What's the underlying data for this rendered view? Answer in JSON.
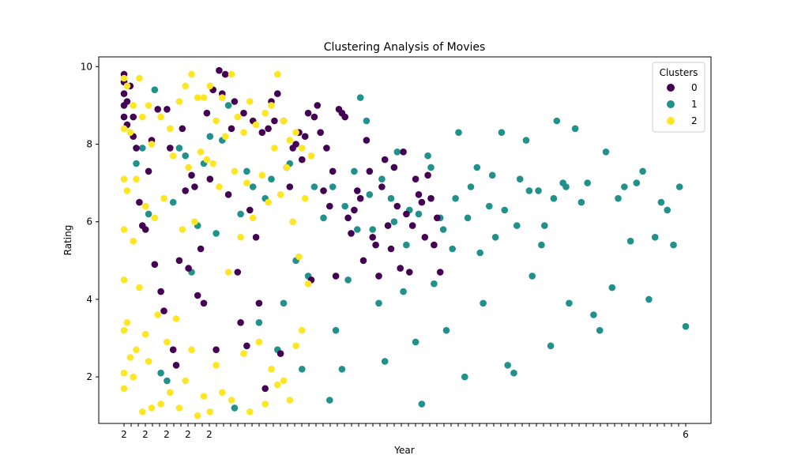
{
  "chart_data": {
    "type": "scatter",
    "title": "Clustering Analysis of Movies",
    "xlabel": "Year",
    "ylabel": "Rating",
    "ylim": [
      0.8,
      10.25
    ],
    "y_ticks": [
      2,
      4,
      6,
      8,
      10
    ],
    "x_ticks_visible": [
      "2",
      "2",
      "2",
      "2",
      "2",
      "6"
    ],
    "x_tick_count_approx": 80,
    "grid": false,
    "legend": {
      "title": "Clusters",
      "placement": "top-right",
      "entries": [
        "0",
        "1",
        "2"
      ]
    },
    "colors": {
      "0": "#440154",
      "1": "#21918c",
      "2": "#fde725"
    },
    "series": [
      {
        "name": "0",
        "points": [
          [
            1,
            9.8
          ],
          [
            1,
            9.6
          ],
          [
            1,
            9.3
          ],
          [
            1,
            9.0
          ],
          [
            1,
            8.7
          ],
          [
            2,
            9.1
          ],
          [
            2,
            8.5
          ],
          [
            3,
            9.5
          ],
          [
            4,
            8.7
          ],
          [
            4,
            8.2
          ],
          [
            5,
            7.9
          ],
          [
            6,
            6.5
          ],
          [
            7,
            5.9
          ],
          [
            8,
            5.8
          ],
          [
            9,
            7.3
          ],
          [
            10,
            8.1
          ],
          [
            11,
            4.9
          ],
          [
            12,
            8.9
          ],
          [
            13,
            4.2
          ],
          [
            14,
            3.7
          ],
          [
            15,
            8.9
          ],
          [
            16,
            7.9
          ],
          [
            17,
            2.7
          ],
          [
            18,
            2.3
          ],
          [
            19,
            5.0
          ],
          [
            20,
            8.4
          ],
          [
            21,
            6.8
          ],
          [
            22,
            4.8
          ],
          [
            23,
            7.2
          ],
          [
            24,
            6.9
          ],
          [
            25,
            4.1
          ],
          [
            26,
            5.3
          ],
          [
            27,
            3.9
          ],
          [
            28,
            8.8
          ],
          [
            29,
            7.1
          ],
          [
            30,
            9.4
          ],
          [
            31,
            2.7
          ],
          [
            32,
            9.9
          ],
          [
            33,
            9.3
          ],
          [
            34,
            9.8
          ],
          [
            35,
            6.7
          ],
          [
            36,
            8.4
          ],
          [
            37,
            9.1
          ],
          [
            38,
            4.7
          ],
          [
            39,
            3.4
          ],
          [
            40,
            8.8
          ],
          [
            41,
            2.8
          ],
          [
            42,
            6.3
          ],
          [
            43,
            8.6
          ],
          [
            44,
            5.6
          ],
          [
            45,
            3.9
          ],
          [
            46,
            8.3
          ],
          [
            47,
            1.7
          ],
          [
            48,
            8.4
          ],
          [
            49,
            9.1
          ],
          [
            50,
            8.6
          ],
          [
            51,
            9.3
          ],
          [
            52,
            2.6
          ],
          [
            53,
            8.6
          ],
          [
            54,
            7.4
          ],
          [
            55,
            6.9
          ],
          [
            56,
            7.9
          ],
          [
            57,
            8.0
          ],
          [
            58,
            8.3
          ],
          [
            59,
            7.6
          ],
          [
            60,
            8.2
          ],
          [
            61,
            8.8
          ],
          [
            62,
            4.5
          ],
          [
            63,
            8.7
          ],
          [
            64,
            9.0
          ],
          [
            65,
            8.3
          ],
          [
            66,
            6.8
          ],
          [
            67,
            7.9
          ],
          [
            68,
            6.4
          ],
          [
            69,
            7.3
          ],
          [
            70,
            4.6
          ],
          [
            71,
            8.9
          ],
          [
            72,
            8.8
          ],
          [
            73,
            8.7
          ],
          [
            74,
            6.1
          ],
          [
            75,
            5.7
          ],
          [
            76,
            6.3
          ],
          [
            77,
            6.8
          ],
          [
            78,
            6.6
          ],
          [
            79,
            5.0
          ],
          [
            80,
            8.1
          ],
          [
            81,
            7.3
          ],
          [
            82,
            5.6
          ],
          [
            83,
            5.4
          ],
          [
            84,
            4.6
          ],
          [
            85,
            6.9
          ],
          [
            86,
            7.6
          ],
          [
            87,
            5.9
          ],
          [
            88,
            5.3
          ],
          [
            89,
            7.4
          ],
          [
            90,
            6.4
          ],
          [
            91,
            4.8
          ],
          [
            92,
            7.8
          ],
          [
            93,
            6.2
          ],
          [
            94,
            4.7
          ],
          [
            95,
            5.9
          ],
          [
            96,
            7.1
          ],
          [
            97,
            6.7
          ],
          [
            98,
            6.5
          ],
          [
            99,
            5.6
          ],
          [
            100,
            7.2
          ],
          [
            101,
            6.6
          ],
          [
            102,
            5.4
          ],
          [
            103,
            6.1
          ],
          [
            104,
            4.7
          ]
        ]
      },
      {
        "name": "1",
        "points": [
          [
            5,
            7.5
          ],
          [
            7,
            7.9
          ],
          [
            9,
            6.2
          ],
          [
            11,
            9.4
          ],
          [
            13,
            2.1
          ],
          [
            15,
            1.9
          ],
          [
            17,
            6.5
          ],
          [
            19,
            7.9
          ],
          [
            21,
            7.7
          ],
          [
            23,
            4.7
          ],
          [
            25,
            5.9
          ],
          [
            27,
            7.5
          ],
          [
            29,
            8.2
          ],
          [
            31,
            5.7
          ],
          [
            33,
            8.1
          ],
          [
            35,
            9.0
          ],
          [
            37,
            1.2
          ],
          [
            39,
            6.2
          ],
          [
            41,
            7.3
          ],
          [
            43,
            6.9
          ],
          [
            45,
            3.4
          ],
          [
            47,
            6.6
          ],
          [
            49,
            7.1
          ],
          [
            51,
            2.7
          ],
          [
            53,
            3.9
          ],
          [
            55,
            7.5
          ],
          [
            57,
            5.0
          ],
          [
            59,
            2.2
          ],
          [
            61,
            4.6
          ],
          [
            63,
            6.9
          ],
          [
            66,
            6.1
          ],
          [
            68,
            1.4
          ],
          [
            70,
            3.2
          ],
          [
            72,
            2.2
          ],
          [
            74,
            4.5
          ],
          [
            76,
            7.3
          ],
          [
            78,
            9.2
          ],
          [
            80,
            8.6
          ],
          [
            82,
            5.8
          ],
          [
            84,
            3.9
          ],
          [
            86,
            2.4
          ],
          [
            88,
            6.6
          ],
          [
            90,
            7.8
          ],
          [
            92,
            4.2
          ],
          [
            94,
            6.3
          ],
          [
            96,
            2.9
          ],
          [
            98,
            1.3
          ],
          [
            100,
            7.7
          ],
          [
            102,
            4.4
          ],
          [
            104,
            6.1
          ],
          [
            106,
            3.2
          ],
          [
            108,
            5.3
          ],
          [
            110,
            8.3
          ],
          [
            112,
            2.0
          ],
          [
            114,
            6.9
          ],
          [
            116,
            7.4
          ],
          [
            118,
            3.9
          ],
          [
            120,
            6.4
          ],
          [
            122,
            5.6
          ],
          [
            124,
            8.3
          ],
          [
            126,
            2.3
          ],
          [
            128,
            2.1
          ],
          [
            130,
            7.1
          ],
          [
            132,
            8.1
          ],
          [
            134,
            4.6
          ],
          [
            136,
            6.8
          ],
          [
            138,
            5.9
          ],
          [
            140,
            2.8
          ],
          [
            142,
            8.6
          ],
          [
            144,
            7.0
          ],
          [
            146,
            3.9
          ],
          [
            148,
            8.4
          ],
          [
            150,
            6.5
          ],
          [
            152,
            7.0
          ],
          [
            154,
            3.6
          ],
          [
            156,
            3.2
          ],
          [
            158,
            7.8
          ],
          [
            160,
            4.3
          ],
          [
            162,
            6.6
          ],
          [
            164,
            6.9
          ],
          [
            166,
            5.5
          ],
          [
            168,
            7.0
          ],
          [
            170,
            7.3
          ],
          [
            172,
            4.0
          ],
          [
            174,
            5.6
          ],
          [
            176,
            6.5
          ],
          [
            178,
            6.3
          ],
          [
            180,
            5.4
          ],
          [
            182,
            6.9
          ],
          [
            184,
            3.3
          ],
          [
            69,
            6.9
          ],
          [
            73,
            6.4
          ],
          [
            77,
            5.8
          ],
          [
            81,
            6.7
          ],
          [
            85,
            7.1
          ],
          [
            89,
            6.0
          ],
          [
            93,
            5.4
          ],
          [
            97,
            6.2
          ],
          [
            101,
            7.4
          ],
          [
            105,
            5.8
          ],
          [
            109,
            6.6
          ],
          [
            113,
            6.1
          ],
          [
            117,
            5.2
          ],
          [
            121,
            7.2
          ],
          [
            125,
            6.3
          ],
          [
            129,
            5.9
          ],
          [
            133,
            6.8
          ],
          [
            137,
            5.4
          ],
          [
            141,
            6.6
          ],
          [
            145,
            6.9
          ]
        ]
      },
      {
        "name": "2",
        "points": [
          [
            1,
            9.7
          ],
          [
            1,
            8.4
          ],
          [
            1,
            7.1
          ],
          [
            1,
            5.8
          ],
          [
            1,
            4.5
          ],
          [
            1,
            3.2
          ],
          [
            1,
            2.1
          ],
          [
            1,
            1.7
          ],
          [
            2,
            9.5
          ],
          [
            2,
            6.8
          ],
          [
            2,
            3.4
          ],
          [
            3,
            8.3
          ],
          [
            3,
            2.5
          ],
          [
            4,
            9.0
          ],
          [
            4,
            5.5
          ],
          [
            4,
            2.0
          ],
          [
            5,
            7.1
          ],
          [
            5,
            2.7
          ],
          [
            6,
            9.7
          ],
          [
            6,
            4.3
          ],
          [
            7,
            8.7
          ],
          [
            7,
            1.1
          ],
          [
            8,
            6.4
          ],
          [
            8,
            3.1
          ],
          [
            9,
            9.0
          ],
          [
            9,
            2.4
          ],
          [
            10,
            8.0
          ],
          [
            10,
            1.2
          ],
          [
            11,
            6.1
          ],
          [
            12,
            3.6
          ],
          [
            13,
            8.7
          ],
          [
            13,
            1.3
          ],
          [
            14,
            6.6
          ],
          [
            15,
            2.9
          ],
          [
            16,
            8.4
          ],
          [
            16,
            1.6
          ],
          [
            17,
            7.7
          ],
          [
            18,
            3.5
          ],
          [
            19,
            9.1
          ],
          [
            19,
            1.2
          ],
          [
            20,
            5.8
          ],
          [
            21,
            9.5
          ],
          [
            21,
            1.9
          ],
          [
            22,
            7.4
          ],
          [
            23,
            9.8
          ],
          [
            23,
            2.7
          ],
          [
            24,
            6.0
          ],
          [
            25,
            9.2
          ],
          [
            25,
            1.0
          ],
          [
            26,
            7.8
          ],
          [
            27,
            9.2
          ],
          [
            27,
            1.5
          ],
          [
            28,
            7.6
          ],
          [
            29,
            9.5
          ],
          [
            29,
            1.1
          ],
          [
            30,
            7.5
          ],
          [
            31,
            8.6
          ],
          [
            31,
            2.3
          ],
          [
            32,
            6.9
          ],
          [
            33,
            9.2
          ],
          [
            33,
            1.6
          ],
          [
            34,
            8.2
          ],
          [
            35,
            4.7
          ],
          [
            36,
            9.8
          ],
          [
            36,
            1.4
          ],
          [
            37,
            7.3
          ],
          [
            38,
            8.7
          ],
          [
            39,
            5.6
          ],
          [
            40,
            8.3
          ],
          [
            40,
            2.6
          ],
          [
            41,
            7.0
          ],
          [
            42,
            9.1
          ],
          [
            42,
            1.1
          ],
          [
            43,
            6.1
          ],
          [
            44,
            8.5
          ],
          [
            45,
            2.9
          ],
          [
            46,
            7.2
          ],
          [
            47,
            8.8
          ],
          [
            47,
            1.3
          ],
          [
            48,
            6.5
          ],
          [
            49,
            9.0
          ],
          [
            49,
            2.2
          ],
          [
            50,
            7.9
          ],
          [
            51,
            9.8
          ],
          [
            51,
            1.8
          ],
          [
            52,
            6.7
          ],
          [
            53,
            8.6
          ],
          [
            53,
            1.9
          ],
          [
            54,
            7.4
          ],
          [
            55,
            8.1
          ],
          [
            55,
            1.4
          ],
          [
            56,
            6.0
          ],
          [
            57,
            8.3
          ],
          [
            57,
            2.8
          ],
          [
            58,
            5.1
          ],
          [
            59,
            7.9
          ],
          [
            59,
            3.2
          ],
          [
            60,
            6.6
          ],
          [
            61,
            4.4
          ],
          [
            62,
            7.7
          ]
        ]
      }
    ]
  }
}
